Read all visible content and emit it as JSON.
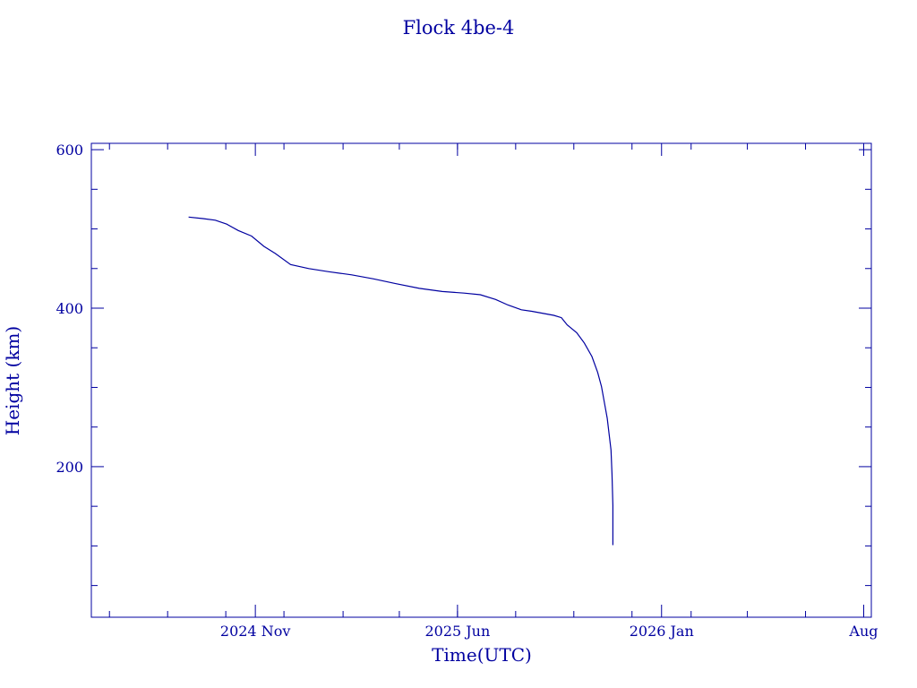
{
  "chart_data": {
    "type": "line",
    "title": "Flock 4be-4",
    "xlabel": "Time(UTC)",
    "ylabel": "Height (km)",
    "color": "#0000a0",
    "x_ticks": [
      {
        "date": "2024-11-01",
        "label": "2024 Nov"
      },
      {
        "date": "2025-06-01",
        "label": "2025 Jun"
      },
      {
        "date": "2026-01-01",
        "label": "2026 Jan"
      },
      {
        "date": "2026-08-01",
        "label": "Aug"
      }
    ],
    "y_ticks": [
      200,
      400,
      600
    ],
    "xlim": [
      "2024-05-13",
      "2026-08-09"
    ],
    "ylim": [
      10,
      608
    ],
    "series": [
      {
        "x": [
          "2024-08-23",
          "2024-09-07",
          "2024-09-20",
          "2024-10-02",
          "2024-10-14",
          "2024-10-28",
          "2024-11-10",
          "2024-11-22",
          "2024-12-08",
          "2024-12-27",
          "2025-01-17",
          "2025-02-10",
          "2025-03-05",
          "2025-03-28",
          "2025-04-22",
          "2025-05-16",
          "2025-06-08",
          "2025-06-25",
          "2025-07-11",
          "2025-07-24",
          "2025-08-07",
          "2025-08-18",
          "2025-09-10",
          "2025-09-18",
          "2025-09-24",
          "2025-10-04",
          "2025-10-12",
          "2025-10-20",
          "2025-10-26",
          "2025-10-30",
          "2025-11-02",
          "2025-11-05",
          "2025-11-07",
          "2025-11-09",
          "2025-11-10",
          "2025-11-11",
          "2025-11-11"
        ],
        "y": [
          515,
          513,
          511,
          506,
          498,
          491,
          478,
          469,
          455,
          450,
          446,
          442,
          437,
          431,
          425,
          421,
          419,
          417,
          411,
          404,
          398,
          396,
          391,
          388,
          379,
          369,
          356,
          339,
          319,
          301,
          281,
          261,
          241,
          221,
          191,
          151,
          101
        ]
      }
    ]
  }
}
